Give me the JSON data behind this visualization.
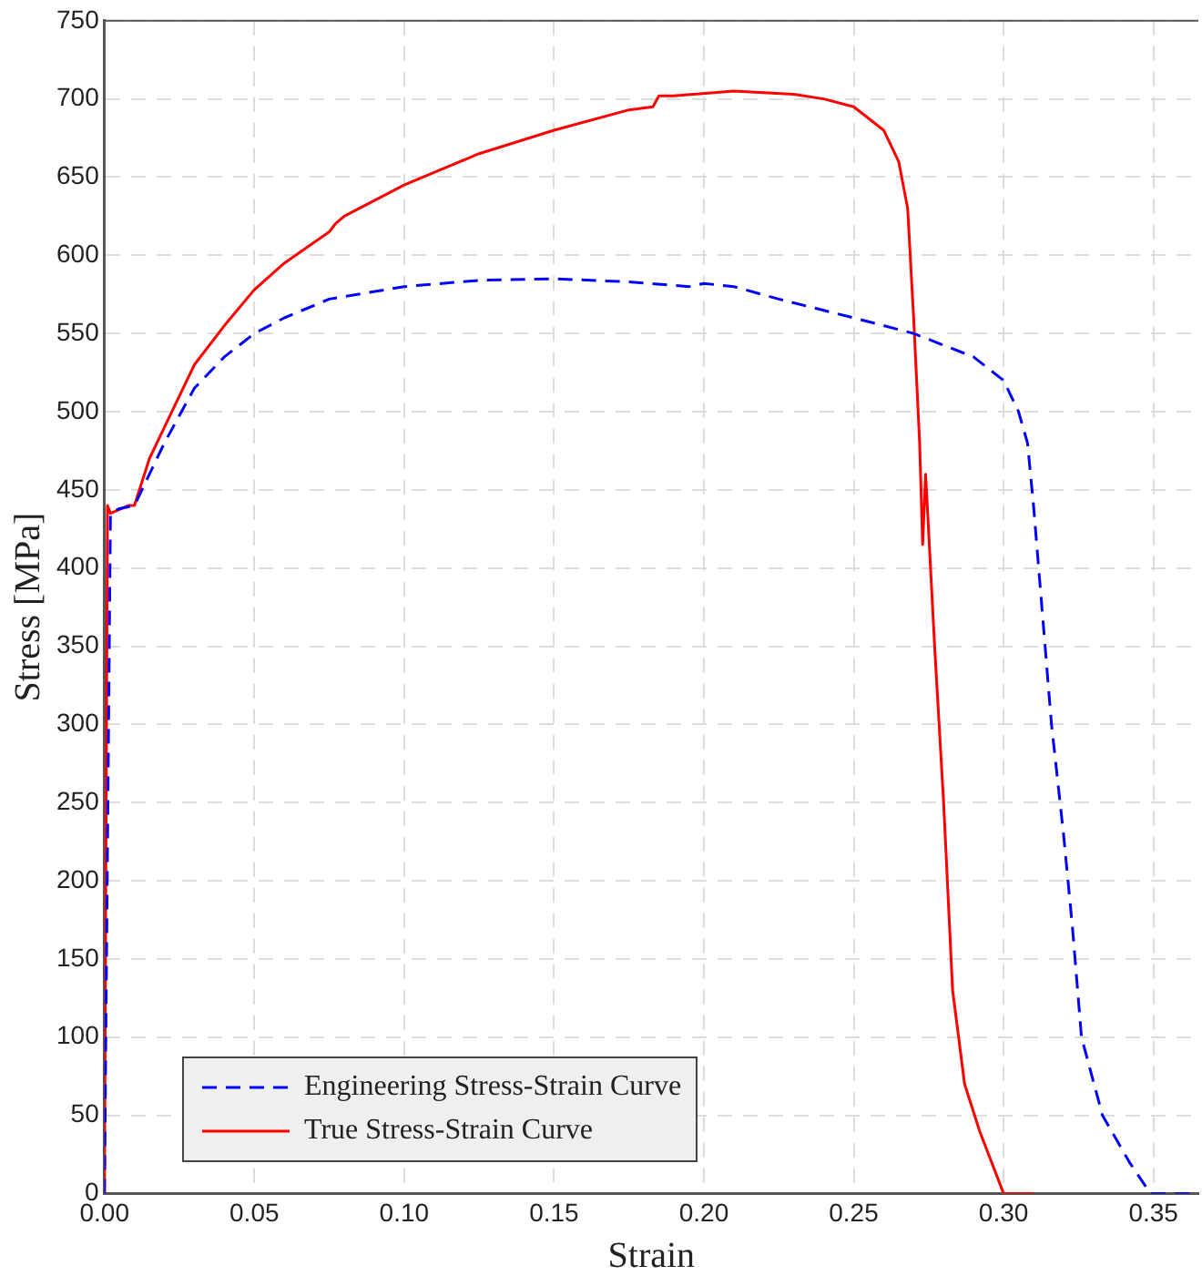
{
  "chart_data": {
    "type": "line",
    "xlabel": "Strain",
    "ylabel": "Stress [MPa]",
    "xlim": [
      0,
      0.365
    ],
    "xticks": [
      {
        "value": 0,
        "label": "0.00"
      },
      {
        "value": 0.05,
        "label": "0.05"
      },
      {
        "value": 0.1,
        "label": "0.10"
      },
      {
        "value": 0.15,
        "label": "0.15"
      },
      {
        "value": 0.2,
        "label": "0.20"
      },
      {
        "value": 0.25,
        "label": "0.25"
      },
      {
        "value": 0.3,
        "label": "0.30"
      },
      {
        "value": 0.35,
        "label": "0.35"
      }
    ],
    "ylim": [
      0,
      750
    ],
    "yticks": [
      0,
      50,
      100,
      150,
      200,
      250,
      300,
      350,
      400,
      450,
      500,
      550,
      600,
      650,
      700,
      750
    ],
    "grid": true,
    "legend": "bottom left",
    "marker": "none",
    "series": [
      {
        "name": "Engineering Stress-Strain Curve",
        "color": "#0000ff",
        "line_style": "dashed",
        "x": [
          0,
          0.002,
          0.005,
          0.01,
          0.02,
          0.03,
          0.04,
          0.05,
          0.06,
          0.075,
          0.1,
          0.125,
          0.15,
          0.175,
          0.195,
          0.2,
          0.21,
          0.225,
          0.25,
          0.27,
          0.29,
          0.3,
          0.305,
          0.308,
          0.31,
          0.313,
          0.316,
          0.32,
          0.323,
          0.326,
          0.333,
          0.342,
          0.349,
          0.365
        ],
        "values": [
          0,
          435,
          438,
          440,
          480,
          515,
          535,
          550,
          560,
          572,
          580,
          584,
          585,
          583,
          580,
          582,
          580,
          572,
          560,
          550,
          535,
          520,
          500,
          480,
          440,
          370,
          300,
          230,
          170,
          100,
          50,
          20,
          0,
          0
        ]
      },
      {
        "name": "True Stress-Strain Curve",
        "color": "#ff0000",
        "line_style": "solid",
        "x": [
          0,
          0.001,
          0.002,
          0.008,
          0.01,
          0.015,
          0.02,
          0.03,
          0.04,
          0.05,
          0.06,
          0.075,
          0.077,
          0.08,
          0.1,
          0.125,
          0.15,
          0.175,
          0.183,
          0.185,
          0.19,
          0.21,
          0.23,
          0.24,
          0.25,
          0.26,
          0.265,
          0.268,
          0.27,
          0.272,
          0.273,
          0.274,
          0.277,
          0.28,
          0.283,
          0.287,
          0.292,
          0.297,
          0.3,
          0.31
        ],
        "values": [
          0,
          440,
          435,
          440,
          440,
          470,
          490,
          530,
          555,
          578,
          595,
          615,
          620,
          625,
          645,
          665,
          680,
          693,
          695,
          702,
          702,
          705,
          703,
          700,
          695,
          680,
          660,
          630,
          560,
          480,
          415,
          460,
          350,
          250,
          130,
          70,
          40,
          15,
          0,
          0
        ]
      }
    ]
  }
}
